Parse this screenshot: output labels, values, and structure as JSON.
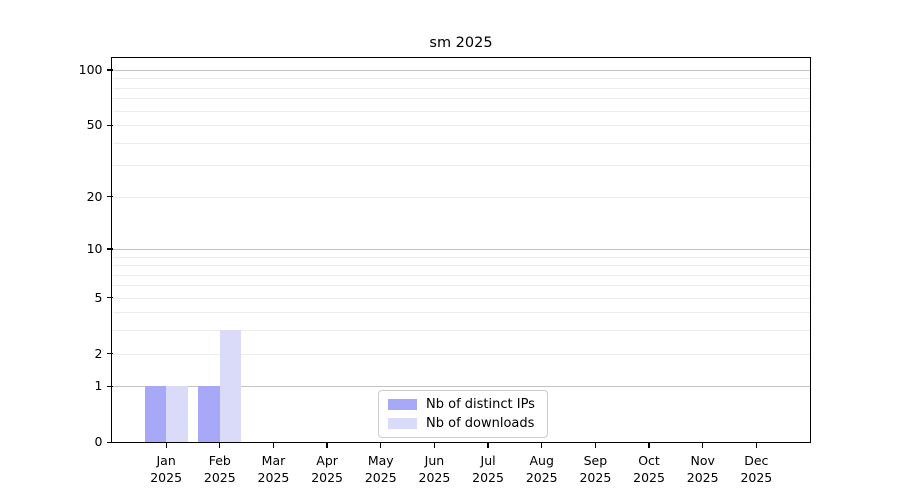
{
  "chart_data": {
    "type": "bar",
    "title": "sm 2025",
    "months": [
      "Jan",
      "Feb",
      "Mar",
      "Apr",
      "May",
      "Jun",
      "Jul",
      "Aug",
      "Sep",
      "Oct",
      "Nov",
      "Dec"
    ],
    "year": "2025",
    "series": [
      {
        "name": "Nb of distinct IPs",
        "color": "#a8a8f8",
        "values": [
          1,
          1,
          0,
          0,
          0,
          0,
          0,
          0,
          0,
          0,
          0,
          0
        ]
      },
      {
        "name": "Nb of downloads",
        "color": "#dadaf9",
        "values": [
          1,
          3,
          0,
          0,
          0,
          0,
          0,
          0,
          0,
          0,
          0,
          0
        ]
      }
    ],
    "y_axis": {
      "scale": "log1p",
      "tick_labels": [
        0,
        1,
        2,
        5,
        10,
        20,
        50,
        100
      ],
      "major_gridlines": [
        1,
        10,
        100
      ],
      "minor_gridlines": [
        2,
        3,
        4,
        5,
        6,
        7,
        8,
        9,
        20,
        30,
        40,
        50,
        60,
        70,
        80,
        90
      ],
      "ylim": [
        0,
        116
      ],
      "grid": true
    },
    "legend_position": "lower center"
  },
  "colors": {
    "grid_major": "#c3c3c3",
    "grid_minor": "#ececec",
    "axis": "#000000"
  }
}
